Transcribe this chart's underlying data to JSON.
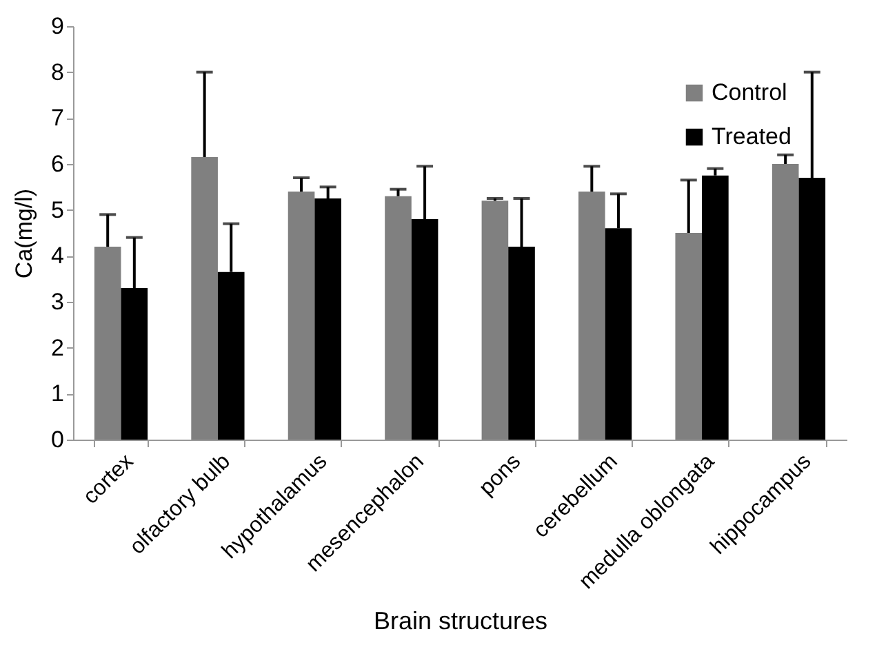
{
  "chart_data": {
    "type": "bar",
    "xlabel": "Brain structures",
    "ylabel": "Ca(mg/l)",
    "categories": [
      "cortex",
      "olfactory bulb",
      "hypothalamus",
      "mesencephalon",
      "pons",
      "cerebellum",
      "medulla oblongata",
      "hippocampus"
    ],
    "series": [
      {
        "name": "Control",
        "color": "#808080",
        "values": [
          4.2,
          6.15,
          5.4,
          5.3,
          5.2,
          5.4,
          4.5,
          6.0
        ],
        "errors": [
          [
            4.2,
            4.9
          ],
          [
            6.15,
            8.0
          ],
          [
            5.4,
            5.7
          ],
          [
            5.3,
            5.45
          ],
          [
            5.2,
            5.25
          ],
          [
            5.4,
            5.95
          ],
          [
            4.5,
            5.65
          ],
          [
            6.0,
            6.2
          ]
        ]
      },
      {
        "name": "Treated",
        "color": "#000000",
        "values": [
          3.3,
          3.65,
          5.25,
          4.8,
          4.2,
          4.6,
          5.75,
          5.7
        ],
        "errors": [
          [
            3.3,
            4.4
          ],
          [
            3.65,
            4.7
          ],
          [
            5.25,
            5.5
          ],
          [
            4.8,
            5.95
          ],
          [
            4.2,
            5.25
          ],
          [
            4.6,
            5.35
          ],
          [
            5.75,
            5.9
          ],
          [
            5.7,
            8.0
          ]
        ]
      }
    ],
    "ylim": [
      0,
      9
    ],
    "yticks": [
      0,
      1,
      2,
      3,
      4,
      5,
      6,
      7,
      8,
      9
    ],
    "grid": false,
    "legend": "top right"
  }
}
